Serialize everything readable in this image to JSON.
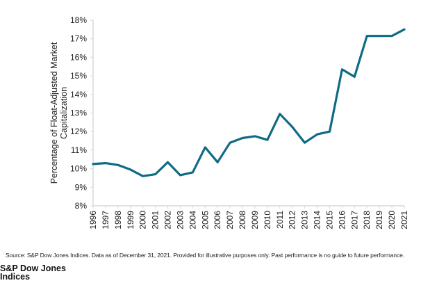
{
  "chart_data": {
    "type": "line",
    "title": "",
    "xlabel": "",
    "ylabel_lines": [
      "Percentage of Float-Adjusted Market",
      "Capitalization"
    ],
    "ylim": [
      8,
      18
    ],
    "yticks": [
      8,
      9,
      10,
      11,
      12,
      13,
      14,
      15,
      16,
      17,
      18
    ],
    "ytick_labels": [
      "8%",
      "9%",
      "10%",
      "11%",
      "12%",
      "13%",
      "14%",
      "15%",
      "16%",
      "17%",
      "18%"
    ],
    "grid": false,
    "legend": "none",
    "categories": [
      "1996",
      "1997",
      "1998",
      "1999",
      "2000",
      "2001",
      "2002",
      "2003",
      "2004",
      "2005",
      "2006",
      "2007",
      "2008",
      "2009",
      "2010",
      "2011",
      "2012",
      "2013",
      "2014",
      "2015",
      "2016",
      "2017",
      "2018",
      "2019",
      "2020",
      "2021"
    ],
    "series": [
      {
        "name": "Percentage of Float-Adjusted Market Capitalization",
        "color": "#0e6b85",
        "values": [
          10.25,
          10.3,
          10.2,
          9.95,
          9.6,
          9.7,
          10.35,
          9.65,
          9.8,
          11.15,
          10.35,
          11.4,
          11.65,
          11.75,
          11.55,
          12.95,
          12.25,
          11.4,
          11.85,
          12.0,
          15.35,
          14.95,
          17.15,
          17.15,
          17.15,
          17.5
        ]
      }
    ]
  },
  "footer": {
    "source": "Source: S&P Dow Jones Indices.  Data as of December 31, 2021.  Provided for illustrative purposes only.  Past performance is no guide to future performance.",
    "brand_line1": "S&P Dow Jones",
    "brand_line2": "Indices"
  },
  "colors": {
    "line": "#0e6b85",
    "axis": "#d9d9d9",
    "text": "#222222"
  }
}
